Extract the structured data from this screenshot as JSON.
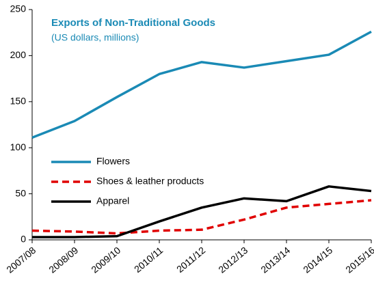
{
  "chart_data": {
    "type": "line",
    "title": "Exports of Non-Traditional Goods",
    "subtitle": "(US dollars, millions)",
    "categories": [
      "2007/08",
      "2008/09",
      "2009/10",
      "2010/11",
      "2011/12",
      "2012/13",
      "2013/14",
      "2014/15",
      "2015/16"
    ],
    "series": [
      {
        "name": "Flowers",
        "color": "#1a8ab5",
        "style": "solid",
        "values": [
          111,
          129,
          155,
          180,
          193,
          187,
          194,
          201,
          226
        ]
      },
      {
        "name": "Shoes & leather products",
        "color": "#e00000",
        "style": "dashed",
        "values": [
          10,
          9,
          7,
          10,
          11,
          22,
          35,
          39,
          43
        ]
      },
      {
        "name": "Apparel",
        "color": "#000000",
        "style": "solid",
        "values": [
          3,
          3,
          4,
          20,
          35,
          45,
          42,
          58,
          53
        ]
      }
    ],
    "ylim": [
      0,
      250
    ],
    "yticks": [
      0,
      50,
      100,
      150,
      200,
      250
    ],
    "grid": false,
    "legend": "center-left"
  }
}
